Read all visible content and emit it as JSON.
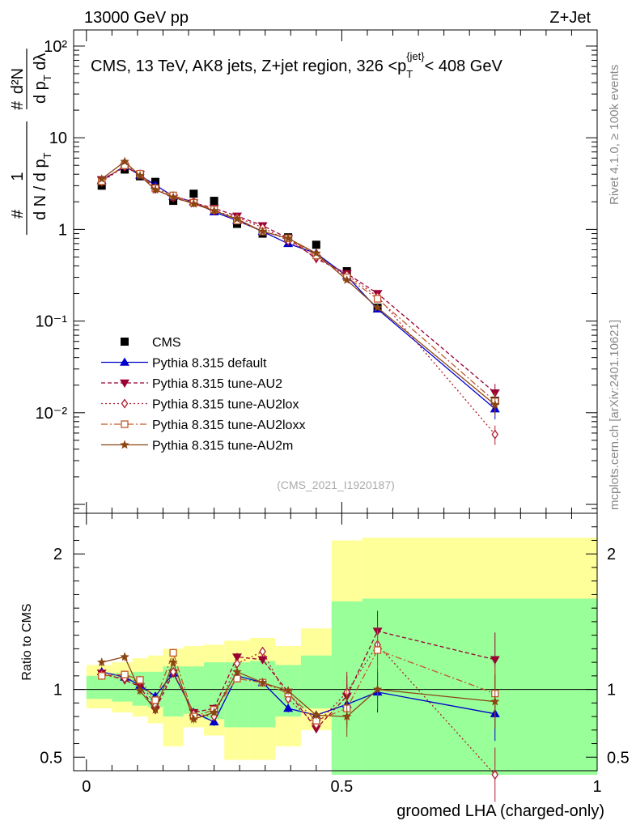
{
  "header": {
    "left": "13000 GeV pp",
    "right": "Z+Jet"
  },
  "side_labels": {
    "rivet": "Rivet 4.1.0, ≥ 100k events",
    "mcplots": "mcplots.cern.ch [arXiv:2401.10621]"
  },
  "colors": {
    "cms": "#000000",
    "default": "#0000cc",
    "au2": "#990033",
    "au2lox": "#b01c2e",
    "au2loxx": "#c0582a",
    "au2m": "#8b4513",
    "band_yellow": "#ffff99",
    "band_green": "#99ff99"
  },
  "chart_data": [
    {
      "type": "line",
      "title": "CMS, 13 TeV, AK8 jets, Z+jet region, 326 <p_T^{jet}< 408 GeV",
      "title_parts": {
        "main": "CMS, 13 TeV, AK8 jets, Z+jet region, 326 <p",
        "sub": "T",
        "sup": "{jet}",
        "tail": "< 408 GeV"
      },
      "ylabel": "1/dN/dp_T dN^2/dp_T dλ",
      "ylabel_parts": {
        "num1": "1",
        "den1": "d N / d p",
        "d1sub": "T",
        "num2": "d²N",
        "den2": "d p",
        "d2sub": "T",
        "d2tail": " dλ",
        "hash": "#"
      },
      "yscale": "log",
      "ylim": [
        0.0008,
        150
      ],
      "ytick_labels": [
        "10⁻²",
        "10⁻¹",
        "1",
        "10",
        "10²"
      ],
      "ytick_values": [
        0.01,
        0.1,
        1,
        10,
        100
      ],
      "watermark": "(CMS_2021_I1920187)",
      "x": [
        0.03,
        0.075,
        0.105,
        0.135,
        0.17,
        0.21,
        0.25,
        0.295,
        0.345,
        0.395,
        0.45,
        0.51,
        0.57,
        0.8
      ],
      "series": [
        {
          "name": "CMS",
          "marker": "square",
          "values": [
            3.0,
            4.5,
            3.8,
            3.3,
            2.05,
            2.45,
            2.05,
            1.15,
            0.9,
            0.82,
            0.68,
            0.35,
            0.14,
            0.0135
          ]
        },
        {
          "name": "Pythia 8.315 default",
          "marker": "triangle",
          "values": [
            3.4,
            4.9,
            3.9,
            3.05,
            2.3,
            2.0,
            1.55,
            1.25,
            0.95,
            0.7,
            0.55,
            0.31,
            0.135,
            0.011
          ]
        },
        {
          "name": "Pythia 8.315 tune-AU2",
          "marker": "triangle-down",
          "values": [
            3.5,
            4.8,
            4.0,
            2.75,
            2.2,
            1.95,
            1.7,
            1.4,
            1.1,
            0.8,
            0.48,
            0.33,
            0.2,
            0.0165
          ]
        },
        {
          "name": "Pythia 8.315 tune-AU2lox",
          "marker": "diamond",
          "values": [
            3.3,
            4.85,
            4.0,
            2.85,
            2.3,
            2.0,
            1.6,
            1.35,
            1.05,
            0.75,
            0.5,
            0.32,
            0.185,
            0.0058
          ]
        },
        {
          "name": "Pythia 8.315 tune-AU2loxx",
          "marker": "square-open",
          "values": [
            3.35,
            5.0,
            4.05,
            2.8,
            2.35,
            1.95,
            1.65,
            1.25,
            0.95,
            0.8,
            0.52,
            0.3,
            0.175,
            0.0133
          ]
        },
        {
          "name": "Pythia 8.315 tune-AU2m",
          "marker": "star",
          "values": [
            3.55,
            5.5,
            3.85,
            2.7,
            2.25,
            1.9,
            1.6,
            1.3,
            0.95,
            0.8,
            0.55,
            0.28,
            0.14,
            0.0122
          ]
        }
      ]
    },
    {
      "type": "line",
      "ylabel": "Ratio to CMS",
      "xlabel": "groomed LHA (charged-only)",
      "xlim": [
        -0.025,
        1.0
      ],
      "ylim": [
        0.4,
        2.3
      ],
      "xtick_values": [
        0,
        0.5,
        1
      ],
      "xtick_labels": [
        "0",
        "0.5",
        "1"
      ],
      "ytick_values": [
        0.5,
        1,
        2
      ],
      "ytick_labels": [
        "0.5",
        "1",
        "2"
      ],
      "bin_edges": [
        0,
        0.05,
        0.09,
        0.12,
        0.15,
        0.19,
        0.23,
        0.27,
        0.32,
        0.37,
        0.42,
        0.48,
        0.54,
        0.6,
        1.0
      ],
      "band_yellow": [
        [
          0.86,
          1.18
        ],
        [
          0.83,
          1.2
        ],
        [
          0.8,
          1.23
        ],
        [
          0.75,
          1.25
        ],
        [
          0.58,
          1.3
        ],
        [
          0.72,
          1.32
        ],
        [
          0.66,
          1.33
        ],
        [
          0.48,
          1.36
        ],
        [
          0.48,
          1.38
        ],
        [
          0.58,
          1.32
        ],
        [
          0.7,
          1.45
        ],
        [
          0.38,
          2.1
        ],
        [
          0.38,
          2.12
        ],
        [
          0.38,
          2.12
        ]
      ],
      "band_green": [
        [
          0.93,
          1.1
        ],
        [
          0.91,
          1.12
        ],
        [
          0.88,
          1.13
        ],
        [
          0.87,
          1.13
        ],
        [
          0.8,
          1.17
        ],
        [
          0.82,
          1.17
        ],
        [
          0.78,
          1.2
        ],
        [
          0.72,
          1.2
        ],
        [
          0.72,
          1.21
        ],
        [
          0.8,
          1.18
        ],
        [
          0.86,
          1.25
        ],
        [
          0.37,
          1.65
        ],
        [
          0.37,
          1.67
        ],
        [
          0.37,
          1.67
        ]
      ],
      "series": [
        {
          "name": "Pythia 8.315 default",
          "values": [
            1.13,
            1.09,
            1.03,
            0.95,
            1.12,
            0.83,
            0.76,
            1.1,
            1.05,
            0.86,
            0.81,
            0.89,
            0.98,
            0.82
          ]
        },
        {
          "name": "Pythia 8.315 tune-AU2",
          "values": [
            1.12,
            1.07,
            1.02,
            0.85,
            1.12,
            0.83,
            0.86,
            1.24,
            1.22,
            0.98,
            0.71,
            0.95,
            1.43,
            1.22
          ]
        },
        {
          "name": "Pythia 8.315 tune-AU2lox",
          "values": [
            1.11,
            1.08,
            1.06,
            0.88,
            1.13,
            0.82,
            0.8,
            1.19,
            1.28,
            0.93,
            0.74,
            0.98,
            1.33,
            0.37
          ]
        },
        {
          "name": "Pythia 8.315 tune-AU2loxx",
          "values": [
            1.1,
            1.11,
            1.07,
            0.92,
            1.27,
            0.8,
            0.85,
            1.08,
            1.05,
            0.97,
            0.77,
            0.86,
            1.29,
            0.97
          ]
        },
        {
          "name": "Pythia 8.315 tune-AU2m",
          "values": [
            1.2,
            1.24,
            0.99,
            0.85,
            1.2,
            0.78,
            0.83,
            1.13,
            1.05,
            0.99,
            0.81,
            0.8,
            1.0,
            0.91
          ]
        }
      ]
    }
  ]
}
